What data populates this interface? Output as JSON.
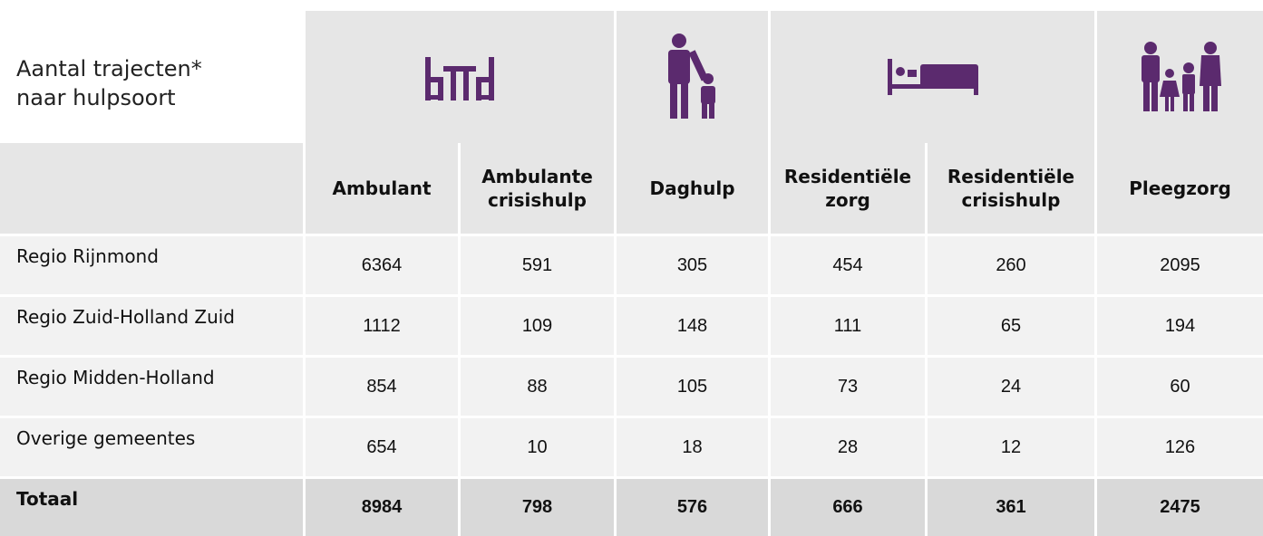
{
  "header": {
    "title": [
      "Aantal trajecten*",
      "naar hulpsoort"
    ]
  },
  "table": {
    "columns": [
      "Ambulant",
      "Ambulante crisishulp",
      "Daghulp",
      "Residentiële zorg",
      "Residentiële crisishulp",
      "Pleegzorg"
    ],
    "rows": [
      {
        "label": "Regio Rijnmond",
        "values": [
          6364,
          591,
          305,
          454,
          260,
          2095
        ]
      },
      {
        "label": "Regio Zuid-Holland Zuid",
        "values": [
          1112,
          109,
          148,
          111,
          65,
          194
        ]
      },
      {
        "label": "Regio Midden-Holland",
        "values": [
          854,
          88,
          105,
          73,
          24,
          60
        ]
      },
      {
        "label": "Overige gemeentes",
        "values": [
          654,
          10,
          18,
          28,
          12,
          126
        ]
      }
    ],
    "total": {
      "label": "Totaal",
      "values": [
        8984,
        798,
        576,
        666,
        361,
        2475
      ]
    }
  }
}
